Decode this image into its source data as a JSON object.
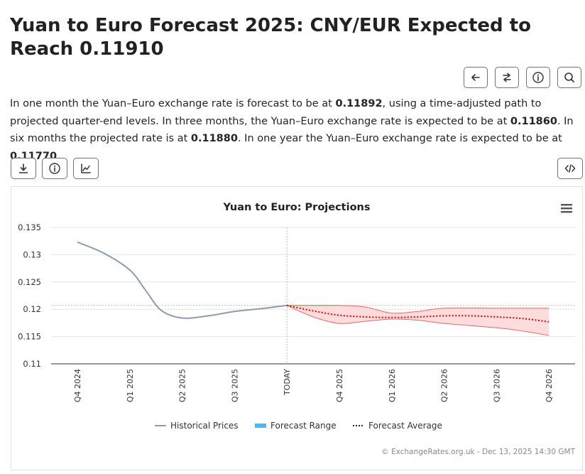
{
  "page": {
    "title": "Yuan to Euro Forecast 2025: CNY/EUR Expected to Reach 0.11910",
    "description": {
      "p1": "In one month the Yuan–Euro exchange rate is forecast to be at ",
      "v1": "0.11892",
      "p2": ", using a time-adjusted path to projected quarter-end levels. In three months, the Yuan–Euro exchange rate is expected to be at ",
      "v2": "0.11860",
      "p3": ". In six months the projected rate is at ",
      "v3": "0.11880",
      "p4": ". In one year the Yuan–Euro exchange rate is expected to be at ",
      "v4": "0.11770",
      "p5": "."
    }
  },
  "toolbar": {
    "top_icons": [
      "arrow-left-icon",
      "swap-icon",
      "info-icon",
      "search-icon"
    ],
    "chart_icons": [
      "download-icon",
      "info-icon",
      "chart-line-icon",
      "code-icon"
    ]
  },
  "colors": {
    "historical": "#8c9bb0",
    "forecast_band_fill": "#ffd6d6",
    "forecast_band_stroke": "#ee6666",
    "forecast_average": "#dd0000",
    "legend_range": "#4db8ee",
    "legend_average": "#1a1aaa",
    "flat_segment": "#66bb66"
  },
  "chart_data": {
    "type": "line",
    "title": "Yuan to Euro: Projections",
    "categories": [
      "Q4 2024",
      "Q1 2025",
      "Q2 2025",
      "Q3 2025",
      "TODAY",
      "Q4 2025",
      "Q1 2026",
      "Q2 2026",
      "Q3 2026",
      "Q4 2026"
    ],
    "ylim": [
      0.11,
      0.135
    ],
    "yticks": [
      "0.135",
      "0.13",
      "0.125",
      "0.12",
      "0.115",
      "0.11"
    ],
    "reference_line": 0.1207,
    "series": [
      {
        "name": "Historical Prices",
        "points": [
          [
            0,
            0.1323
          ],
          [
            0.5,
            0.1303
          ],
          [
            1,
            0.1272
          ],
          [
            1.3,
            0.1235
          ],
          [
            1.6,
            0.1198
          ],
          [
            2,
            0.1184
          ],
          [
            2.5,
            0.1188
          ],
          [
            3,
            0.1196
          ],
          [
            3.5,
            0.1201
          ],
          [
            4,
            0.1207
          ]
        ]
      },
      {
        "name": "Forecast Range",
        "upper": [
          [
            4,
            0.1207
          ],
          [
            5,
            0.1207
          ],
          [
            5.5,
            0.1204
          ],
          [
            6,
            0.1193
          ],
          [
            6.5,
            0.1196
          ],
          [
            7,
            0.1202
          ],
          [
            8,
            0.1202
          ],
          [
            9,
            0.1202
          ]
        ],
        "lower": [
          [
            4,
            0.1207
          ],
          [
            4.5,
            0.1186
          ],
          [
            5,
            0.1174
          ],
          [
            5.5,
            0.1178
          ],
          [
            6,
            0.1182
          ],
          [
            6.5,
            0.118
          ],
          [
            7,
            0.1174
          ],
          [
            8,
            0.1166
          ],
          [
            8.5,
            0.116
          ],
          [
            9,
            0.1152
          ]
        ]
      },
      {
        "name": "Forecast Average",
        "points": [
          [
            4,
            0.1207
          ],
          [
            4.5,
            0.1197
          ],
          [
            5,
            0.1189
          ],
          [
            5.5,
            0.1186
          ],
          [
            6,
            0.1185
          ],
          [
            6.5,
            0.1186
          ],
          [
            7,
            0.1188
          ],
          [
            7.5,
            0.1188
          ],
          [
            8,
            0.1186
          ],
          [
            8.5,
            0.1183
          ],
          [
            9,
            0.1177
          ]
        ]
      }
    ],
    "flat_segment": [
      [
        4,
        0.1207
      ],
      [
        5,
        0.1207
      ]
    ],
    "legend": [
      "Historical Prices",
      "Forecast Range",
      "Forecast Average"
    ],
    "legend_position": "bottom",
    "credit": "© ExchangeRates.org.uk - Dec 13, 2025 14:30 GMT",
    "grid": true
  }
}
